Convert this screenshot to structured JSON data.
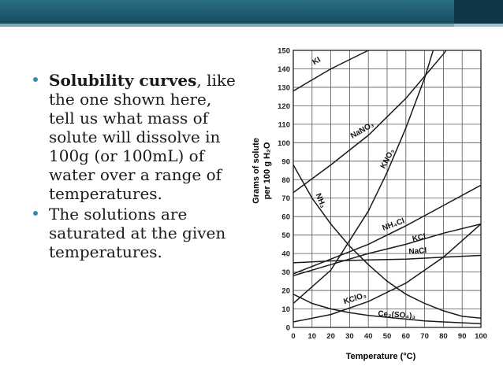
{
  "slide": {
    "bullets": [
      {
        "bold": "Solubility curves",
        "rest": ", like the one shown here, tell us what mass of solute will dissolve in 100g (or 100mL) of water over a range of temperatures."
      },
      {
        "bold": "",
        "rest": "The solutions are saturated at the given temperatures."
      }
    ],
    "colors": {
      "band": "#1e5a70",
      "bullet": "#3a8aa8",
      "text": "#1a1a1a"
    }
  },
  "chart_data": {
    "type": "line",
    "xlabel": "Temperature (°C)",
    "ylabel_line1": "Grams of solute",
    "ylabel_line2": "per 100 g H₂O",
    "xlim": [
      0,
      100
    ],
    "ylim": [
      0,
      150
    ],
    "x_ticks": [
      "0",
      "10",
      "20",
      "30",
      "40",
      "50",
      "60",
      "70",
      "80",
      "90",
      "100"
    ],
    "y_ticks": [
      "0",
      "10",
      "20",
      "30",
      "40",
      "50",
      "60",
      "70",
      "80",
      "90",
      "100",
      "110",
      "120",
      "130",
      "140",
      "150"
    ],
    "grid": true,
    "series": [
      {
        "name": "KI",
        "x": [
          0,
          20,
          40,
          60
        ],
        "y": [
          128,
          140,
          150,
          158
        ]
      },
      {
        "name": "NaNO₃",
        "x": [
          0,
          20,
          40,
          60,
          80,
          100
        ],
        "y": [
          73,
          88,
          104,
          124,
          148,
          176
        ]
      },
      {
        "name": "KNO₃",
        "x": [
          0,
          20,
          40,
          50,
          60,
          70,
          80
        ],
        "y": [
          13,
          31,
          63,
          84,
          108,
          135,
          168
        ]
      },
      {
        "name": "NH₃",
        "x": [
          0,
          10,
          20,
          30,
          40,
          50,
          60,
          70,
          80,
          90,
          100
        ],
        "y": [
          88,
          70,
          56,
          44,
          34,
          25,
          18,
          13,
          9,
          6,
          5
        ]
      },
      {
        "name": "NH₄Cl",
        "x": [
          0,
          20,
          40,
          60,
          80,
          100
        ],
        "y": [
          29,
          37,
          45,
          55,
          66,
          77
        ]
      },
      {
        "name": "KCl",
        "x": [
          0,
          20,
          40,
          60,
          80,
          100
        ],
        "y": [
          28,
          34,
          40,
          45,
          51,
          56
        ]
      },
      {
        "name": "NaCl",
        "x": [
          0,
          20,
          40,
          60,
          80,
          100
        ],
        "y": [
          35,
          36,
          36.5,
          37,
          38,
          39
        ]
      },
      {
        "name": "KClO₃",
        "x": [
          0,
          20,
          40,
          60,
          80,
          100
        ],
        "y": [
          3,
          7,
          14,
          24,
          38,
          56
        ]
      },
      {
        "name": "Ce₂(SO₄)₃",
        "x": [
          0,
          10,
          20,
          30,
          40,
          50,
          60,
          70,
          80,
          90,
          100
        ],
        "y": [
          18,
          13,
          10,
          8,
          6.5,
          5.5,
          4.5,
          3.5,
          3,
          2.5,
          2
        ]
      }
    ]
  }
}
